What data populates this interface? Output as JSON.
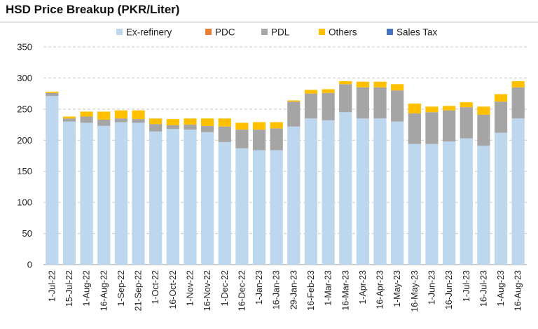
{
  "chart_data": {
    "type": "bar",
    "stacked": true,
    "title": "HSD Price Breakup (PKR/Liter)",
    "legend_position": "top",
    "ylim": [
      0,
      350
    ],
    "yticks": [
      0,
      50,
      100,
      150,
      200,
      250,
      300,
      350
    ],
    "grid": "horizontal dashed",
    "categories": [
      "1-Jul-22",
      "15-Jul-22",
      "1-Aug-22",
      "16-Aug-22",
      "1-Sep-22",
      "21-Sep-22",
      "1-Oct-22",
      "16-Oct-22",
      "1-Nov-22",
      "16-Nov-22",
      "1-Dec-22",
      "16-Dec-22",
      "1-Jan-23",
      "16-Jan-23",
      "29-Jan-23",
      "16-Feb-23",
      "1-Mar-23",
      "16-Mar-23",
      "1-Apr-23",
      "16-Apr-23",
      "1-May-23",
      "16-May-23",
      "1-Jun-23",
      "16-Jun-23",
      "1-Jul-23",
      "16-Jul-23",
      "1-Aug-23",
      "16-Aug-23"
    ],
    "series": [
      {
        "name": "Ex-refinery",
        "color": "#bdd7ee",
        "values": [
          271,
          230,
          228,
          223,
          229,
          228,
          214,
          218,
          217,
          213,
          197,
          187,
          184,
          184,
          222,
          235,
          232,
          245,
          235,
          235,
          230,
          194,
          194,
          198,
          203,
          191,
          212,
          235
        ]
      },
      {
        "name": "PDC",
        "color": "#ed7d31",
        "values": [
          0,
          0,
          0,
          0,
          0,
          0,
          0,
          0,
          0,
          0,
          0,
          0,
          0,
          0,
          0,
          0,
          0,
          0,
          0,
          0,
          0,
          0,
          0,
          0,
          0,
          0,
          0,
          0
        ]
      },
      {
        "name": "PDL",
        "color": "#a5a5a5",
        "values": [
          5,
          5,
          10,
          10,
          6,
          6,
          12,
          6,
          8,
          10,
          25,
          30,
          33,
          35,
          40,
          40,
          44,
          45,
          50,
          50,
          50,
          49,
          51,
          50,
          50,
          50,
          50,
          50
        ]
      },
      {
        "name": "Others",
        "color": "#ffc000",
        "values": [
          2,
          3,
          8,
          13,
          13,
          14,
          9,
          10,
          10,
          12,
          13,
          11,
          12,
          10,
          2,
          6,
          6,
          5,
          9,
          9,
          10,
          16,
          9,
          7,
          8,
          13,
          12,
          10
        ]
      },
      {
        "name": "Sales Tax",
        "color": "#4472c4",
        "values": [
          0,
          0,
          0,
          0,
          0,
          0,
          0,
          0,
          0,
          0,
          0,
          0,
          0,
          0,
          0,
          0,
          0,
          0,
          0,
          0,
          0,
          0,
          0,
          0,
          0,
          0,
          0,
          0
        ]
      }
    ]
  }
}
